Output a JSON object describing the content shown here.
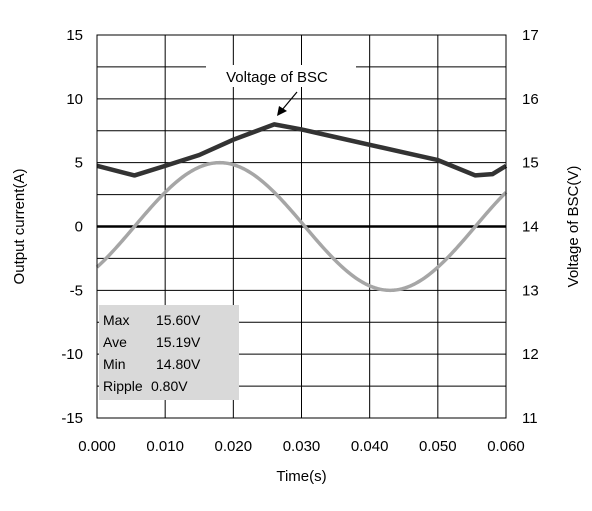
{
  "chart_data": {
    "type": "line",
    "xlabel": "Time(s)",
    "ylabel_left": "Output current(A)",
    "ylabel_right": "Voltage of BSC(V)",
    "xlim": [
      0.0,
      0.06
    ],
    "ylim_left": [
      -15,
      15
    ],
    "ylim_right": [
      11,
      17
    ],
    "x_ticks": [
      "0.000",
      "0.010",
      "0.020",
      "0.030",
      "0.040",
      "0.050",
      "0.060"
    ],
    "y_left_ticks": [
      "-15",
      "-10",
      "-5",
      "0",
      "5",
      "10",
      "15"
    ],
    "y_right_ticks": [
      "11",
      "12",
      "13",
      "14",
      "15",
      "16",
      "17"
    ],
    "grid": true,
    "annotation": "Voltage of BSC",
    "stats_box": [
      {
        "label": "Max",
        "value": "15.60V"
      },
      {
        "label": "Ave",
        "value": "15.19V"
      },
      {
        "label": "Min",
        "value": "14.80V"
      },
      {
        "label": "Ripple",
        "value": "0.80V"
      }
    ],
    "series": [
      {
        "axis": "right",
        "color": "#333333",
        "x": [
          0.0,
          0.0055,
          0.01,
          0.015,
          0.02,
          0.026,
          0.03,
          0.035,
          0.04,
          0.045,
          0.05,
          0.0555,
          0.058,
          0.06
        ],
        "y": [
          14.95,
          14.8,
          14.95,
          15.12,
          15.36,
          15.6,
          15.52,
          15.4,
          15.28,
          15.16,
          15.04,
          14.8,
          14.82,
          14.95
        ]
      },
      {
        "axis": "left",
        "color": "#a6a6a6",
        "function": "sine",
        "amplitude": 5,
        "frequency_hz": 20,
        "phase_x": 0.0055,
        "offset": 0.0,
        "x_range": [
          0.0,
          0.06
        ]
      },
      {
        "axis": "left",
        "color": "#000000",
        "x": [
          0.0,
          0.06
        ],
        "y": [
          0,
          0
        ]
      }
    ]
  }
}
